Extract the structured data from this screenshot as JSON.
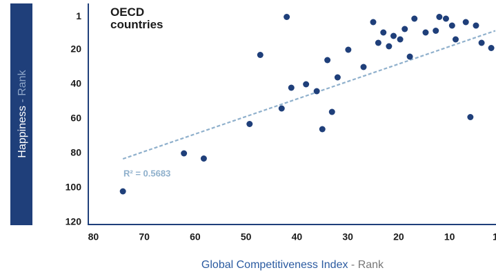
{
  "chart_data": {
    "type": "scatter",
    "title": "OECD\ncountries",
    "xlabel": {
      "main": "Global Competitiveness Index",
      "suffix": " - Rank"
    },
    "ylabel": {
      "main": "Happiness",
      "suffix": " - Rank"
    },
    "color": "#1f3f7a",
    "xlim": [
      81,
      1
    ],
    "ylim": [
      120,
      -4
    ],
    "xticks": [
      80,
      70,
      60,
      50,
      40,
      30,
      20,
      10,
      1
    ],
    "yticks": [
      1,
      20,
      40,
      60,
      80,
      100,
      120
    ],
    "x": [
      42.0,
      47.2,
      25.0,
      23.0,
      24.0,
      21.9,
      21.0,
      19.7,
      18.8,
      16.9,
      17.8,
      14.7,
      12.7,
      12.0,
      10.7,
      9.5,
      8.8,
      6.8,
      4.8,
      3.7,
      1.8,
      5.9,
      29.9,
      34.0,
      26.9,
      32.0,
      38.2,
      41.1,
      36.1,
      33.1,
      43.0,
      35.0,
      49.3,
      62.2,
      58.3,
      74.2
    ],
    "values": [
      1,
      23,
      4,
      10,
      16,
      18,
      12,
      14,
      8,
      2,
      24,
      10,
      9,
      1,
      2,
      6,
      14,
      4,
      6,
      16,
      19,
      59,
      20,
      26,
      30,
      36,
      40,
      42,
      44,
      56,
      54,
      66,
      63,
      80,
      83,
      102
    ],
    "trendline": {
      "label": "R² = 0.5683",
      "color": "#8fb0cc",
      "x": [
        74.2,
        1
      ],
      "y": [
        83.2,
        9
      ]
    }
  }
}
